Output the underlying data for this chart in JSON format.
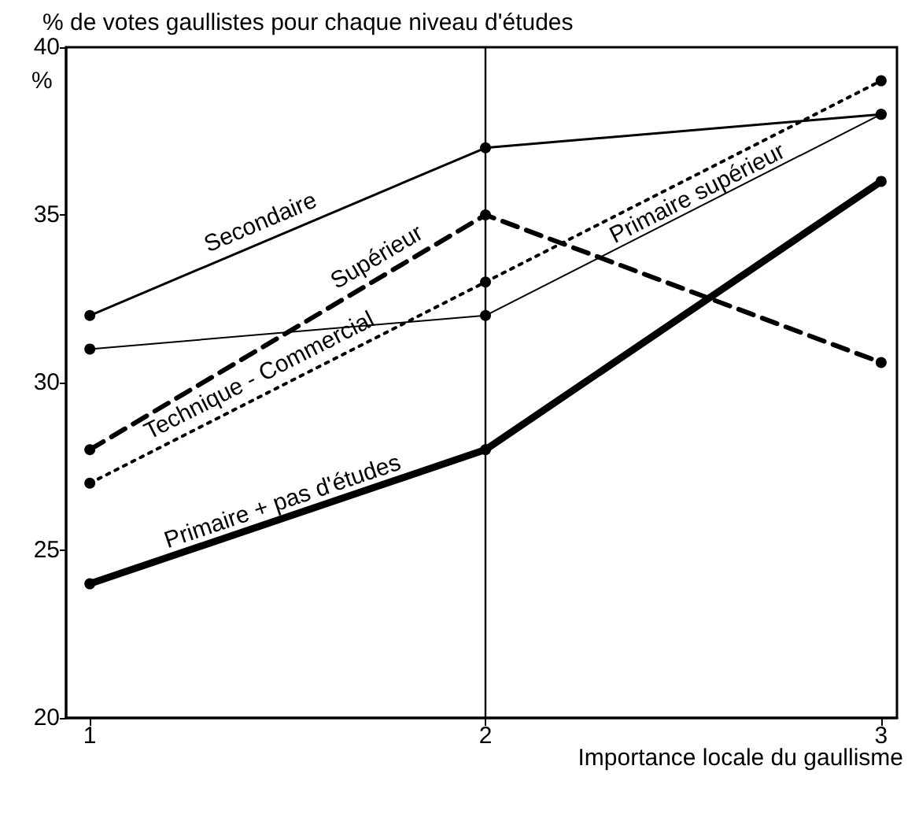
{
  "chart_data": {
    "type": "line",
    "title": "% de votes gaullistes pour chaque niveau d'études",
    "xlabel": "Importance locale du gaullisme",
    "ylabel": "%",
    "x": [
      1,
      2,
      3
    ],
    "series": [
      {
        "name": "Secondaire",
        "color": "#000000",
        "values": [
          32,
          37,
          38
        ],
        "line_style": "solid"
      },
      {
        "name": "Supérieur",
        "color": "#000000",
        "values": [
          28,
          35,
          30.6
        ],
        "line_style": "dashed"
      },
      {
        "name": "Technique - Commercial",
        "color": "#000000",
        "values": [
          27,
          33,
          39
        ],
        "line_style": "dotted"
      },
      {
        "name": "Primaire supérieur",
        "color": "#000000",
        "values": [
          31,
          32,
          38
        ],
        "line_style": "solid"
      },
      {
        "name": "Primaire + pas d'études",
        "color": "#000000",
        "values": [
          24,
          28,
          36
        ],
        "line_style": "solid"
      }
    ],
    "xlim": [
      0.94,
      3.04
    ],
    "xticks": [
      1,
      2,
      3
    ],
    "ylim": [
      20,
      40
    ],
    "yticks": [
      20,
      25,
      30,
      35,
      40
    ],
    "grid": "x",
    "marker": "circle",
    "legend": false
  }
}
